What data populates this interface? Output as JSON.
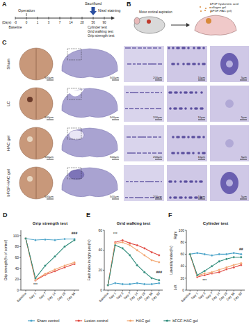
{
  "figure": {
    "panel_a": {
      "label": "A",
      "operation": "Operation",
      "days": "(Days)",
      "baseline": "Baseline",
      "ticks": [
        "-3",
        "0",
        "1",
        "3",
        "7",
        "14",
        "28",
        "56",
        "90"
      ],
      "sacrificed": "Sacrificed",
      "nissl": "Nissl staining",
      "tests": [
        "Cylinder test",
        "Grid walking test",
        "Grip strength test"
      ]
    },
    "panel_b": {
      "label": "B",
      "aspiration": "Motor cortical aspiration",
      "gel": [
        "bFGF hyaluronic acid",
        "collagen gel",
        "(bFGF-HAC gel)"
      ]
    },
    "panel_c": {
      "label": "C",
      "rows": [
        "Sham",
        "LC",
        "HAC gel",
        "bFGF-HAC gel"
      ],
      "scale_bars": [
        "500μm",
        "500μm",
        "200μm",
        "10μm",
        "5μm"
      ]
    },
    "chart_labels": [
      "D",
      "E",
      "F"
    ]
  },
  "chart_data": [
    {
      "type": "line",
      "title": "Grip strength test",
      "y_label": "Grip strength(% of control)",
      "categories": [
        "Baseline",
        "Day 1",
        "Day 7",
        "Day 14",
        "Day 28",
        "Day 56"
      ],
      "ylim": [
        0,
        110
      ],
      "yticks": [
        0,
        20,
        40,
        60,
        80,
        100
      ],
      "legend": "bottom",
      "marker": "circle",
      "series": [
        {
          "name": "Sham control",
          "color": "#4aa3c9",
          "values": [
            95,
            92,
            93,
            92,
            94,
            94
          ]
        },
        {
          "name": "Lesion control",
          "color": "#e0463e",
          "values": [
            95,
            18,
            28,
            35,
            42,
            48
          ]
        },
        {
          "name": "HAC gel",
          "color": "#f2a36b",
          "values": [
            95,
            19,
            30,
            38,
            45,
            51
          ]
        },
        {
          "name": "bFGF-HAC gel",
          "color": "#2e8b7a",
          "values": [
            95,
            22,
            45,
            62,
            80,
            92
          ]
        }
      ],
      "annotations": [
        {
          "text": "***",
          "x": "Day 1",
          "y": 8
        },
        {
          "text": "###",
          "x": "Day 56",
          "y": 102
        }
      ]
    },
    {
      "type": "line",
      "title": "Grid walking test",
      "y_label": "Fault index in right paw(%)",
      "categories": [
        "Baseline",
        "Day 1",
        "Day 3",
        "Day 7",
        "Day 14",
        "Day 28",
        "Day 56",
        "Day 90"
      ],
      "ylim": [
        0,
        60
      ],
      "yticks": [
        0,
        20,
        40,
        60
      ],
      "marker": "circle",
      "series": [
        {
          "name": "Sham control",
          "color": "#4aa3c9",
          "values": [
            5,
            7,
            6,
            6,
            7,
            6,
            6,
            7
          ]
        },
        {
          "name": "Lesion control",
          "color": "#e0463e",
          "values": [
            5,
            48,
            50,
            47,
            45,
            42,
            38,
            35
          ]
        },
        {
          "name": "HAC gel",
          "color": "#f2a36b",
          "values": [
            5,
            47,
            48,
            45,
            40,
            35,
            30,
            28
          ]
        },
        {
          "name": "bFGF-HAC gel",
          "color": "#2e8b7a",
          "values": [
            5,
            45,
            42,
            35,
            25,
            18,
            12,
            10
          ]
        }
      ],
      "annotations": [
        {
          "text": "***",
          "x": "Day 1",
          "y": 55
        },
        {
          "text": "###",
          "x": "Day 90",
          "y": 17
        }
      ]
    },
    {
      "type": "line",
      "title": "Cylinder test",
      "y_label": "Laterality index(%)",
      "y_end_labels": [
        "Right",
        "Left"
      ],
      "categories": [
        "Baseline",
        "Day 1",
        "Day 3",
        "Day 7",
        "Day 14",
        "Day 28",
        "Day 56",
        "Day 90"
      ],
      "ylim": [
        0,
        100
      ],
      "yticks": [
        0,
        20,
        40,
        60,
        80,
        100
      ],
      "marker": "circle",
      "series": [
        {
          "name": "Sham control",
          "color": "#4aa3c9",
          "values": [
            60,
            62,
            60,
            58,
            60,
            60,
            62,
            60
          ]
        },
        {
          "name": "Lesion control",
          "color": "#e0463e",
          "values": [
            60,
            22,
            25,
            28,
            30,
            35,
            38,
            42
          ]
        },
        {
          "name": "HAC gel",
          "color": "#f2a36b",
          "values": [
            60,
            24,
            28,
            30,
            34,
            38,
            42,
            45
          ]
        },
        {
          "name": "bFGF-HAC gel",
          "color": "#2e8b7a",
          "values": [
            60,
            25,
            32,
            40,
            48,
            52,
            55,
            55
          ]
        }
      ],
      "annotations": [
        {
          "text": "***",
          "x": "Day 3",
          "y": 14
        },
        {
          "text": "##",
          "x": "Day 90",
          "y": 66
        }
      ]
    }
  ]
}
